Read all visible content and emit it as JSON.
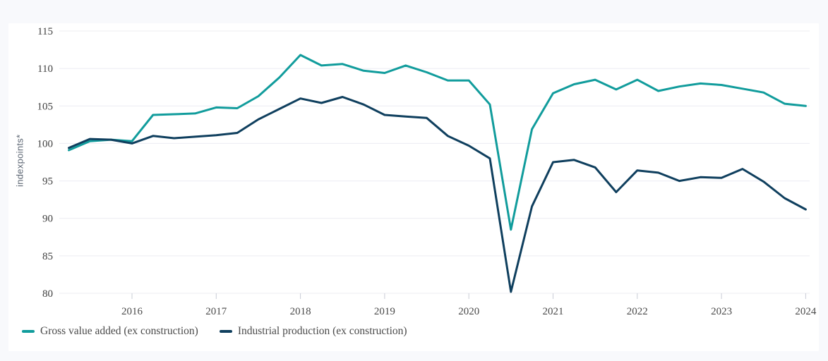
{
  "page": {
    "background": "#f8f9fc",
    "panel_background": "#ffffff"
  },
  "chart_data": {
    "type": "line",
    "title": "",
    "ylabel": "indexpoints*",
    "grid": "horizontal",
    "legend_position": "bottom-left",
    "y_axis": {
      "min": 80,
      "max": 115,
      "step": 5,
      "ticks": [
        115,
        110,
        105,
        100,
        95,
        90,
        85,
        80
      ]
    },
    "x_axis": {
      "year_ticks": [
        "2016",
        "2017",
        "2018",
        "2019",
        "2020",
        "2021",
        "2022",
        "2023",
        "2024"
      ]
    },
    "x": [
      "2015 Q1",
      "2015 Q2",
      "2015 Q3",
      "2015 Q4",
      "2016 Q1",
      "2016 Q2",
      "2016 Q3",
      "2016 Q4",
      "2017 Q1",
      "2017 Q2",
      "2017 Q3",
      "2017 Q4",
      "2018 Q1",
      "2018 Q2",
      "2018 Q3",
      "2018 Q4",
      "2019 Q1",
      "2019 Q2",
      "2019 Q3",
      "2019 Q4",
      "2020 Q1",
      "2020 Q2",
      "2020 Q3",
      "2020 Q4",
      "2021 Q1",
      "2021 Q2",
      "2021 Q3",
      "2021 Q4",
      "2022 Q1",
      "2022 Q2",
      "2022 Q3",
      "2022 Q4",
      "2023 Q1",
      "2023 Q2",
      "2023 Q3",
      "2023 Q4"
    ],
    "series": [
      {
        "name": "Gross value added (ex construction)",
        "color": "#119c9c",
        "values": [
          99.1,
          100.3,
          100.5,
          100.3,
          103.8,
          103.9,
          104.0,
          104.8,
          104.7,
          106.3,
          108.8,
          111.8,
          110.4,
          110.6,
          109.7,
          109.4,
          110.4,
          109.5,
          108.4,
          108.4,
          105.2,
          88.5,
          101.9,
          106.7,
          107.9,
          108.5,
          107.2,
          108.5,
          107.0,
          107.6,
          108.0,
          107.8,
          107.3,
          106.8,
          105.3,
          105.0
        ]
      },
      {
        "name": "Industrial production (ex construction)",
        "color": "#0f3f5e",
        "values": [
          99.4,
          100.6,
          100.5,
          100.0,
          101.0,
          100.7,
          100.9,
          101.1,
          101.4,
          103.2,
          104.6,
          106.0,
          105.4,
          106.2,
          105.2,
          103.8,
          103.6,
          103.4,
          101.0,
          99.7,
          98.0,
          80.2,
          91.6,
          97.5,
          97.8,
          96.8,
          93.5,
          96.4,
          96.1,
          95.0,
          95.5,
          95.4,
          96.6,
          94.9,
          92.7,
          91.2
        ]
      }
    ],
    "gridline_color": "#ececf2",
    "tick_mark_color": "#c9ccd6"
  }
}
